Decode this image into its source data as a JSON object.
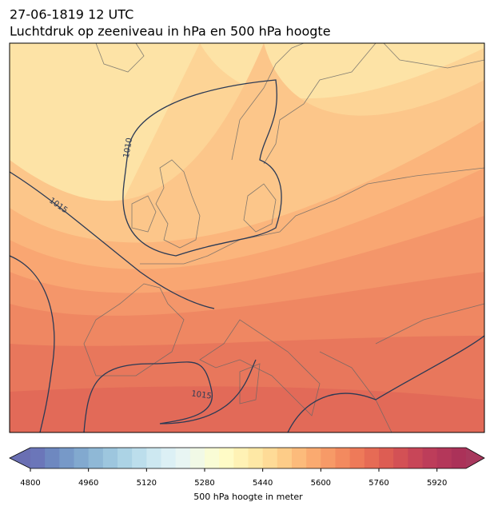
{
  "header": {
    "date": "27-06-1819 12 UTC",
    "title": "Luchtdruk op zeeniveau in hPa en 500 hPa hoogte"
  },
  "map": {
    "isobar_labels": [
      1010,
      1015,
      1015
    ],
    "isobar_color": "#2b3a55"
  },
  "colorbar": {
    "label": "500 hPa hoogte in meter",
    "lim": [
      4800,
      6000
    ],
    "ticks": [
      4800,
      4960,
      5120,
      5280,
      5440,
      5600,
      5760,
      5920
    ],
    "colors": [
      "#6b76b9",
      "#6e88c0",
      "#7799c8",
      "#82a9cf",
      "#8fb8d6",
      "#9dc6de",
      "#acd3e5",
      "#bcdeec",
      "#cde8f1",
      "#dcf0f5",
      "#e8f5f3",
      "#f1f9e6",
      "#f9fcd5",
      "#fffbc6",
      "#fff2b5",
      "#fee8a5",
      "#fedb97",
      "#fdcc88",
      "#fcbb7b",
      "#faaa70",
      "#f79a67",
      "#f38a5f",
      "#ee7a59",
      "#e66b55",
      "#dd5d53",
      "#d35155",
      "#c84658",
      "#bd3d5a",
      "#b4375a",
      "#ab3259"
    ],
    "under_color": "#6a6fb3",
    "over_color": "#a8385d"
  }
}
